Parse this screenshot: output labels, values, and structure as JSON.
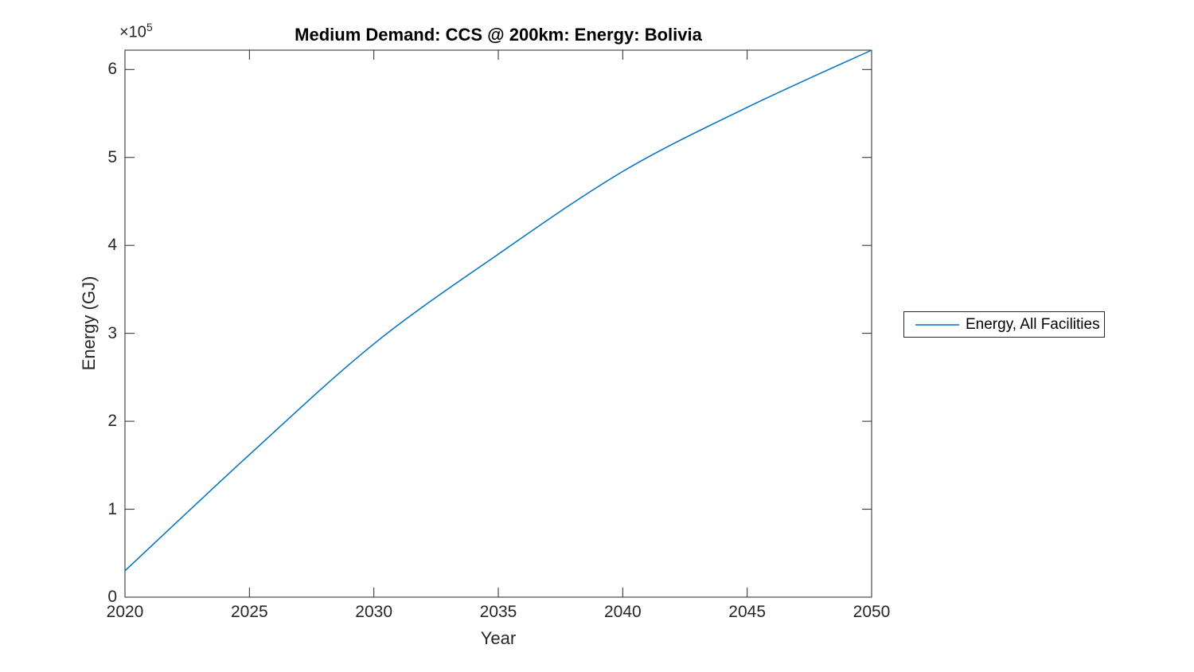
{
  "title": "Medium Demand: CCS @ 200km: Energy: Bolivia",
  "axes": {
    "xlabel": "Year",
    "ylabel": "Energy (GJ)",
    "y_multiplier": {
      "base": "×10",
      "exponent": "5"
    }
  },
  "legend": {
    "entries": [
      {
        "label": "Energy, All Facilities",
        "color": "#0072BD"
      }
    ]
  },
  "colors": {
    "line": "#0072BD",
    "axis": "#262626",
    "text": "#262626",
    "title": "#000000",
    "background": "#ffffff"
  },
  "chart_data": {
    "type": "line",
    "title": "Medium Demand: CCS @ 200km: Energy: Bolivia",
    "xlabel": "Year",
    "ylabel": "Energy (GJ)",
    "xlim": [
      2020,
      2050
    ],
    "ylim": [
      0,
      622000
    ],
    "grid": false,
    "legend_position": "right-outside",
    "x_ticks": {
      "values": [
        2020,
        2025,
        2030,
        2035,
        2040,
        2045,
        2050
      ],
      "labels": [
        "2020",
        "2025",
        "2030",
        "2035",
        "2040",
        "2045",
        "2050"
      ]
    },
    "y_ticks": {
      "values": [
        0,
        100000,
        200000,
        300000,
        400000,
        500000,
        600000
      ],
      "labels": [
        "0",
        "1",
        "2",
        "3",
        "4",
        "5",
        "6"
      ],
      "multiplier": "×10^5"
    },
    "series": [
      {
        "name": "Energy, All Facilities",
        "color": "#0072BD",
        "x": [
          2020,
          2025,
          2030,
          2035,
          2040,
          2045,
          2050
        ],
        "y": [
          30000,
          162000,
          288000,
          390000,
          484000,
          557000,
          622000
        ]
      }
    ]
  }
}
